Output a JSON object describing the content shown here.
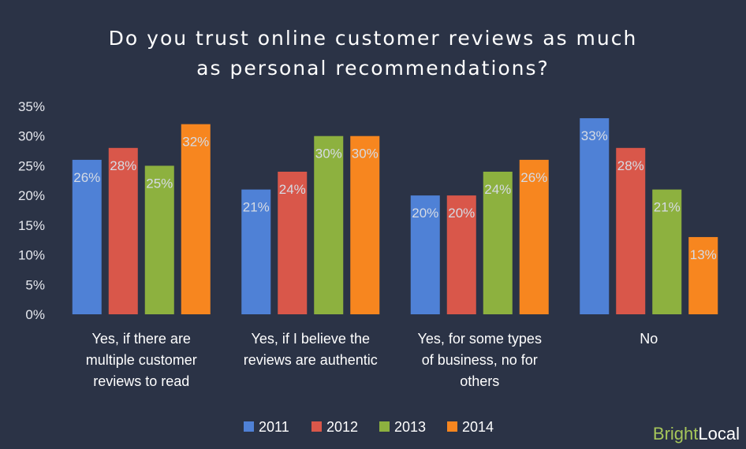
{
  "chart_data": {
    "type": "bar",
    "title": "Do you trust online customer reviews as much as personal recommendations?",
    "title_lines": [
      "Do you trust online customer reviews as much",
      "as personal recommendations?"
    ],
    "categories": [
      "Yes, if there are multiple customer reviews to read",
      "Yes, if I believe the reviews are authentic",
      "Yes, for some types of business, no for others",
      "No"
    ],
    "category_lines": [
      [
        "Yes, if there are",
        "multiple customer",
        "reviews to read"
      ],
      [
        "Yes, if I believe the",
        "reviews are authentic"
      ],
      [
        "Yes, for some types",
        "of business, no for",
        "others"
      ],
      [
        "No"
      ]
    ],
    "series": [
      {
        "name": "2011",
        "color": "#4f81d6",
        "values": [
          26,
          21,
          20,
          33
        ]
      },
      {
        "name": "2012",
        "color": "#d9574a",
        "values": [
          28,
          24,
          20,
          28
        ]
      },
      {
        "name": "2013",
        "color": "#8db13f",
        "values": [
          25,
          30,
          24,
          21
        ]
      },
      {
        "name": "2014",
        "color": "#f7861f",
        "values": [
          32,
          30,
          26,
          13
        ]
      }
    ],
    "ylim": [
      0,
      35
    ],
    "yticks": [
      0,
      5,
      10,
      15,
      20,
      25,
      30,
      35
    ],
    "ytick_format": "%",
    "value_format": "%",
    "grid": false,
    "legend": "bottom-center",
    "label_color": "#d6dbe4"
  },
  "branding": {
    "bright": "Bright",
    "local": "Local"
  }
}
